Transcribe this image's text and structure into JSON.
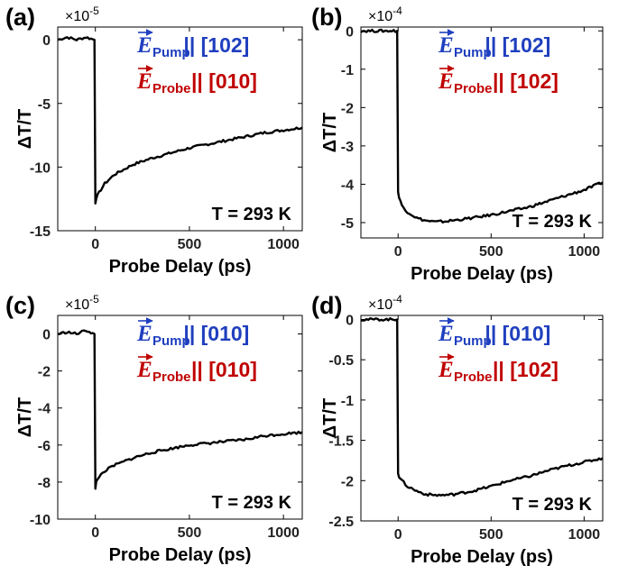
{
  "chart_data": [
    {
      "type": "line",
      "panel_label": "(a)",
      "ylabel": "ΔT/T",
      "xlabel": "Probe Delay (ps)",
      "scale_factor": "×10^-5",
      "scale_base": "×10",
      "scale_exponent": "-5",
      "xlim": [
        -200,
        1100
      ],
      "ylim": [
        -15,
        1
      ],
      "xticks": [
        0,
        500,
        1000
      ],
      "yticks": [
        0,
        -5,
        -10,
        -15
      ],
      "ytick_labels": [
        "0",
        "-5",
        "-10",
        "-15"
      ],
      "annotation": "T = 293 K",
      "legend": [
        {
          "field": "E",
          "subscript": "Pump",
          "text": " || [102]",
          "color": "#1f3fbf"
        },
        {
          "field": "E",
          "subscript": "Probe",
          "text": " || [010]",
          "color": "#c00000"
        }
      ],
      "series": [
        {
          "name": "ΔT/T",
          "color": "#000000",
          "x": [
            -200,
            -150,
            -100,
            -50,
            -5,
            0,
            5,
            20,
            50,
            100,
            150,
            200,
            300,
            400,
            500,
            600,
            700,
            800,
            900,
            1000,
            1100
          ],
          "values": [
            0,
            0.2,
            0,
            0.2,
            0,
            -12.8,
            -12.4,
            -12,
            -11.3,
            -10.6,
            -10.2,
            -9.8,
            -9.3,
            -8.9,
            -8.5,
            -8.2,
            -7.9,
            -7.6,
            -7.3,
            -7.1,
            -6.9
          ]
        }
      ]
    },
    {
      "type": "line",
      "panel_label": "(b)",
      "ylabel": "ΔT/T",
      "xlabel": "Probe Delay (ps)",
      "scale_factor": "×10^-4",
      "scale_base": "×10",
      "scale_exponent": "-4",
      "xlim": [
        -200,
        1100
      ],
      "ylim": [
        -5.4,
        0.1
      ],
      "xticks": [
        0,
        500,
        1000
      ],
      "yticks": [
        0,
        -1,
        -2,
        -3,
        -4,
        -5
      ],
      "ytick_labels": [
        "0",
        "-1",
        "-2",
        "-3",
        "-4",
        "-5"
      ],
      "annotation": "T = 293 K",
      "legend": [
        {
          "field": "E",
          "subscript": "Pump",
          "text": " || [102]",
          "color": "#1f3fbf"
        },
        {
          "field": "E",
          "subscript": "Probe",
          "text": " || [102]",
          "color": "#c00000"
        }
      ],
      "series": [
        {
          "name": "ΔT/T",
          "color": "#000000",
          "x": [
            -200,
            -100,
            -5,
            0,
            5,
            20,
            50,
            100,
            150,
            200,
            250,
            300,
            400,
            500,
            600,
            700,
            800,
            900,
            1000,
            1100
          ],
          "values": [
            0,
            0,
            0,
            -4.2,
            -4.35,
            -4.55,
            -4.72,
            -4.88,
            -4.95,
            -4.98,
            -4.97,
            -4.94,
            -4.88,
            -4.8,
            -4.7,
            -4.6,
            -4.45,
            -4.3,
            -4.15,
            -3.95
          ]
        }
      ]
    },
    {
      "type": "line",
      "panel_label": "(c)",
      "ylabel": "ΔT/T",
      "xlabel": "Probe Delay (ps)",
      "scale_factor": "×10^-5",
      "scale_base": "×10",
      "scale_exponent": "-5",
      "xlim": [
        -200,
        1100
      ],
      "ylim": [
        -10,
        1
      ],
      "xticks": [
        0,
        500,
        1000
      ],
      "yticks": [
        0,
        -2,
        -4,
        -6,
        -8,
        -10
      ],
      "ytick_labels": [
        "0",
        "-2",
        "-4",
        "-6",
        "-8",
        "-10"
      ],
      "annotation": "T = 293 K",
      "legend": [
        {
          "field": "E",
          "subscript": "Pump",
          "text": " || [010]",
          "color": "#1f3fbf"
        },
        {
          "field": "E",
          "subscript": "Probe",
          "text": " || [010]",
          "color": "#c00000"
        }
      ],
      "series": [
        {
          "name": "ΔT/T",
          "color": "#000000",
          "x": [
            -200,
            -150,
            -100,
            -50,
            -5,
            0,
            5,
            20,
            50,
            100,
            150,
            200,
            300,
            400,
            500,
            600,
            700,
            800,
            900,
            1000,
            1100
          ],
          "values": [
            0,
            0.1,
            0,
            0.2,
            0,
            -8.4,
            -8.0,
            -7.7,
            -7.4,
            -7.1,
            -6.9,
            -6.7,
            -6.4,
            -6.2,
            -6.0,
            -5.9,
            -5.8,
            -5.7,
            -5.5,
            -5.4,
            -5.3
          ]
        }
      ]
    },
    {
      "type": "line",
      "panel_label": "(d)",
      "ylabel": "ΔT/T",
      "xlabel": "Probe Delay (ps)",
      "scale_factor": "×10^-4",
      "scale_base": "×10",
      "scale_exponent": "-4",
      "xlim": [
        -200,
        1100
      ],
      "ylim": [
        -2.5,
        0.05
      ],
      "xticks": [
        0,
        500,
        1000
      ],
      "yticks": [
        0,
        -0.5,
        -1,
        -1.5,
        -2,
        -2.5
      ],
      "ytick_labels": [
        "0",
        "-0.5",
        "-1",
        "-1.5",
        "-2",
        "-2.5"
      ],
      "annotation": "T = 293 K",
      "legend": [
        {
          "field": "E",
          "subscript": "Pump",
          "text": " || [010]",
          "color": "#1f3fbf"
        },
        {
          "field": "E",
          "subscript": "Probe",
          "text": " || [102]",
          "color": "#c00000"
        }
      ],
      "series": [
        {
          "name": "ΔT/T",
          "color": "#000000",
          "x": [
            -200,
            -100,
            -5,
            0,
            5,
            20,
            50,
            100,
            150,
            200,
            250,
            300,
            400,
            500,
            600,
            700,
            800,
            900,
            1000,
            1100
          ],
          "values": [
            0,
            0,
            0,
            -1.9,
            -1.95,
            -2.0,
            -2.07,
            -2.13,
            -2.17,
            -2.18,
            -2.18,
            -2.17,
            -2.13,
            -2.07,
            -2.0,
            -1.95,
            -1.88,
            -1.82,
            -1.77,
            -1.72
          ]
        }
      ]
    }
  ]
}
